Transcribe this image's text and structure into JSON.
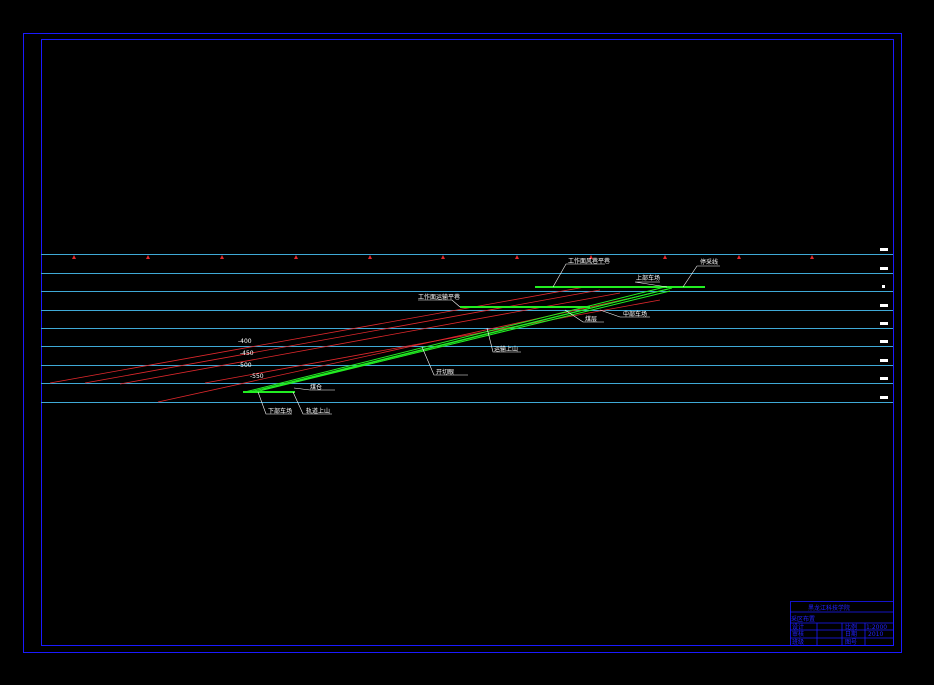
{
  "colors": {
    "frame": "#1a1aff",
    "level": "#3fa9d6",
    "red": "#e0282c",
    "seam": "#22ee22",
    "text": "#ffffff"
  },
  "labels": {
    "top_airway": "工作面风巷平巷",
    "upper_yard": "上部车场",
    "stop_line": "停采线",
    "haulage": "工作面运输平巷",
    "middle_yard": "中部车场",
    "coal_seam": "煤层",
    "incline_up": "运输上山",
    "open_cut": "开切眼",
    "lower_yard": "下部车场",
    "sump": "煤仓",
    "track_up": "轨道上山",
    "level_1": "-400",
    "level_2": "-450",
    "level_3": "-500",
    "level_4": "-550"
  },
  "title_block": {
    "school": "黑龙江科技学院",
    "drawing": "采区布置",
    "row1_left": "设计",
    "row1_mid": "比例",
    "row1_val": "1:2000",
    "row2_left": "审核",
    "row2_mid": "日期",
    "row2_val": "2010",
    "row3_left": "班级",
    "row3_mid": "图号"
  }
}
